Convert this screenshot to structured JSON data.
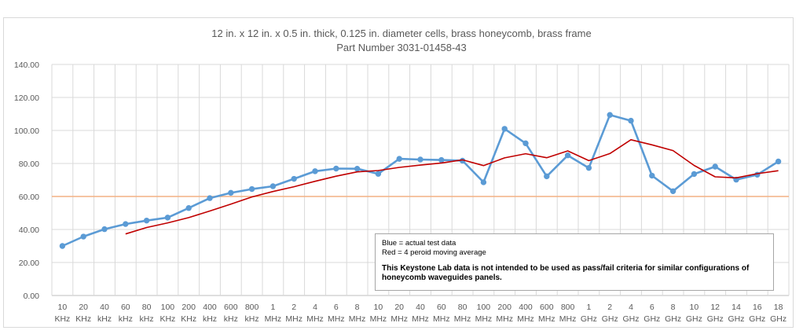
{
  "chart_data": {
    "type": "line",
    "title": "12 in. x 12 in. x 0.5 in. thick, 0.125 in. diameter cells, brass honeycomb, brass frame",
    "subtitle": "Part Number 3031-01458-43",
    "ylim": [
      0,
      140
    ],
    "y_ticks": [
      "0.00",
      "20.00",
      "40.00",
      "60.00",
      "80.00",
      "100.00",
      "120.00",
      "140.00"
    ],
    "y_tick_values": [
      0,
      20,
      40,
      60,
      80,
      100,
      120,
      140
    ],
    "categories": [
      [
        "10",
        "KHz"
      ],
      [
        "20",
        "KHz"
      ],
      [
        "40",
        "kHz"
      ],
      [
        "60",
        "kHz"
      ],
      [
        "80",
        "kHz"
      ],
      [
        "100",
        "KHz"
      ],
      [
        "200",
        "KHz"
      ],
      [
        "400",
        "kHz"
      ],
      [
        "600",
        "kHz"
      ],
      [
        "800",
        "kHz"
      ],
      [
        "1",
        "MHz"
      ],
      [
        "2",
        "MHz"
      ],
      [
        "4",
        "MHz"
      ],
      [
        "6",
        "MHz"
      ],
      [
        "8",
        "MHz"
      ],
      [
        "10",
        "MHz"
      ],
      [
        "20",
        "MHz"
      ],
      [
        "40",
        "MHz"
      ],
      [
        "60",
        "MHz"
      ],
      [
        "80",
        "MHz"
      ],
      [
        "100",
        "MHz"
      ],
      [
        "200",
        "MHz"
      ],
      [
        "400",
        "MHz"
      ],
      [
        "600",
        "MHz"
      ],
      [
        "800",
        "MHz"
      ],
      [
        "1",
        "GHz"
      ],
      [
        "2",
        "GHz"
      ],
      [
        "4",
        "GHz"
      ],
      [
        "6",
        "GHz"
      ],
      [
        "8",
        "GHz"
      ],
      [
        "10",
        "GHz"
      ],
      [
        "12",
        "GHz"
      ],
      [
        "14",
        "GHz"
      ],
      [
        "16",
        "GHz"
      ],
      [
        "18",
        "GHz"
      ]
    ],
    "series": [
      {
        "name": "actual test data",
        "color": "#5b9bd5",
        "markers": true,
        "values": [
          30.0,
          35.7,
          40.2,
          43.3,
          45.4,
          47.2,
          53.0,
          59.0,
          62.2,
          64.5,
          66.2,
          70.7,
          75.3,
          76.9,
          76.8,
          73.7,
          82.8,
          82.4,
          82.1,
          81.7,
          68.6,
          101.0,
          92.2,
          72.2,
          84.9,
          77.3,
          109.4,
          105.9,
          72.6,
          63.2,
          73.6,
          78.1,
          70.2,
          73.2,
          81.2
        ]
      },
      {
        "name": "4 peroid moving average",
        "color": "#c00000",
        "markers": false,
        "values": [
          null,
          null,
          null,
          37.3,
          41.2,
          44.0,
          47.2,
          51.2,
          55.4,
          59.7,
          63.0,
          65.9,
          69.2,
          72.3,
          74.9,
          75.7,
          77.6,
          79.0,
          80.3,
          82.2,
          78.7,
          83.4,
          85.9,
          83.5,
          87.6,
          81.7,
          86.0,
          94.4,
          91.3,
          87.8,
          78.8,
          71.9,
          71.3,
          73.8,
          75.6
        ]
      }
    ],
    "reference_line": {
      "value": 60,
      "color": "#f4b183"
    },
    "legend": {
      "line1": "Blue = actual test data",
      "line2": "Red = 4 peroid moving average",
      "note": "This Keystone Lab data is not intended to be used as pass/fail criteria for similar configurations of honeycomb waveguides panels."
    }
  }
}
